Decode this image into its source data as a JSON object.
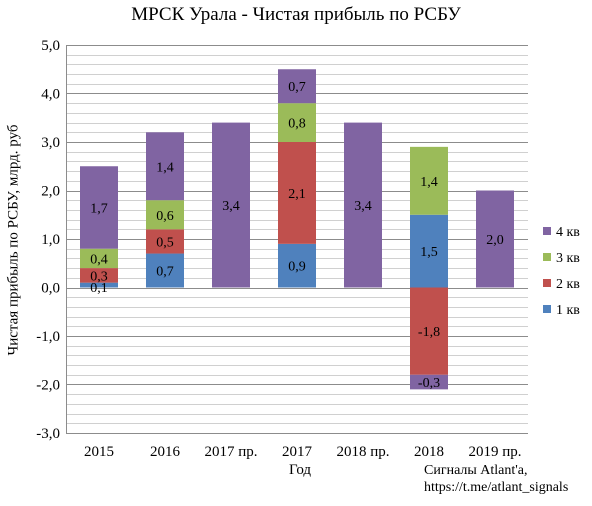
{
  "chart_data": {
    "type": "bar",
    "stacked": true,
    "title": "МРСК Урала - Чистая прибыль по РСБУ",
    "xlabel": "Год",
    "ylabel": "Чистая прибыль по РСБУ, млрд. руб",
    "ylim": [
      -3.0,
      5.0
    ],
    "ytick_values": [
      -3,
      -2,
      -1,
      0,
      1,
      2,
      3,
      4,
      5
    ],
    "ytick_labels": [
      "-3,0",
      "-2,0",
      "-1,0",
      "0,0",
      "1,0",
      "2,0",
      "3,0",
      "4,0",
      "5,0"
    ],
    "grid": true,
    "legend_position": "right",
    "categories": [
      "2015",
      "2016",
      "2017 пр.",
      "2017",
      "2018 пр.",
      "2018",
      "2019 пр."
    ],
    "series": [
      {
        "name": "1 кв",
        "color": "#4f81bd",
        "values": [
          0.1,
          0.7,
          null,
          0.9,
          null,
          1.5,
          null
        ],
        "labels": [
          "0,1",
          "0,7",
          "",
          "0,9",
          "",
          "1,5",
          ""
        ]
      },
      {
        "name": "2 кв",
        "color": "#c0504d",
        "values": [
          0.3,
          0.5,
          null,
          2.1,
          null,
          -1.8,
          null
        ],
        "labels": [
          "0,3",
          "0,5",
          "",
          "2,1",
          "",
          "-1,8",
          ""
        ]
      },
      {
        "name": "3 кв",
        "color": "#9bbb59",
        "values": [
          0.4,
          0.6,
          null,
          0.8,
          null,
          1.4,
          null
        ],
        "labels": [
          "0,4",
          "0,6",
          "",
          "0,8",
          "",
          "1,4",
          ""
        ]
      },
      {
        "name": "4 кв",
        "color": "#8064a2",
        "values": [
          1.7,
          1.4,
          3.4,
          0.7,
          3.4,
          -0.3,
          2.0
        ],
        "labels": [
          "1,7",
          "1,4",
          "3,4",
          "0,7",
          "3,4",
          "-0,3",
          "2,0"
        ]
      }
    ],
    "legend_order": [
      "4 кв",
      "3 кв",
      "2 кв",
      "1 кв"
    ]
  },
  "source_line1": "Сигналы Atlant'a,",
  "source_line2": "https://t.me/atlant_signals"
}
